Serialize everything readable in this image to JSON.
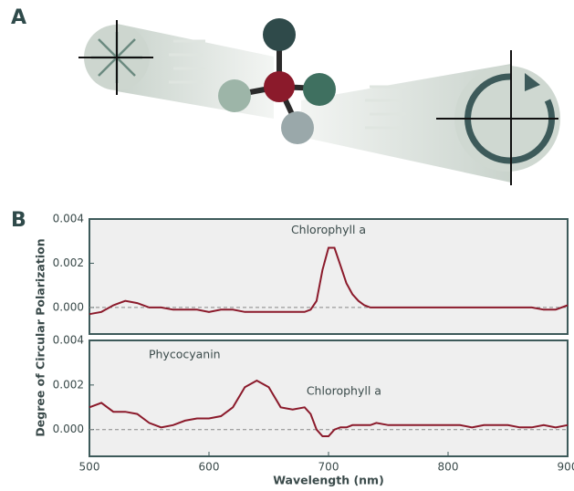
{
  "panel_labels": [
    "A",
    "B"
  ],
  "ylabel": "Degree of Circular Polarization",
  "chart_data": [
    {
      "type": "line",
      "color": "#8b1a2b",
      "x": [
        500,
        510,
        520,
        530,
        540,
        550,
        560,
        570,
        580,
        590,
        600,
        610,
        620,
        630,
        640,
        650,
        660,
        670,
        680,
        685,
        690,
        695,
        700,
        705,
        710,
        715,
        720,
        725,
        730,
        735,
        740,
        750,
        760,
        770,
        780,
        790,
        800,
        810,
        820,
        830,
        840,
        850,
        860,
        870,
        880,
        890,
        900
      ],
      "values": [
        -0.0003,
        -0.0002,
        0.0001,
        0.0003,
        0.0002,
        0.0,
        0.0,
        -0.0001,
        -0.0001,
        -0.0001,
        -0.0002,
        -0.0001,
        -0.0001,
        -0.0002,
        -0.0002,
        -0.0002,
        -0.0002,
        -0.0002,
        -0.0002,
        -0.0001,
        0.0003,
        0.0017,
        0.0027,
        0.0027,
        0.0019,
        0.0011,
        0.0006,
        0.0003,
        0.0001,
        0.0,
        0.0,
        0.0,
        0.0,
        0.0,
        0.0,
        0.0,
        0.0,
        0.0,
        0.0,
        0.0,
        0.0,
        0.0,
        0.0,
        0.0,
        -0.0001,
        -0.0001,
        0.0001
      ],
      "annotations": [
        "Chlorophyll a"
      ],
      "xlim": [
        500,
        900
      ],
      "ylim": [
        -0.0012,
        0.004
      ],
      "yticks": [
        0.004,
        0.002,
        {
          "value": 0,
          "label": "0.000"
        }
      ],
      "zero_line": true
    },
    {
      "type": "line",
      "color": "#8b1a2b",
      "x": [
        500,
        510,
        520,
        530,
        540,
        550,
        560,
        570,
        580,
        590,
        600,
        610,
        620,
        630,
        640,
        650,
        660,
        670,
        680,
        685,
        690,
        695,
        700,
        705,
        710,
        715,
        720,
        725,
        730,
        735,
        740,
        750,
        760,
        770,
        780,
        790,
        800,
        810,
        820,
        830,
        840,
        850,
        860,
        870,
        880,
        890,
        900
      ],
      "values": [
        0.001,
        0.0012,
        0.0008,
        0.0008,
        0.0007,
        0.0003,
        0.0001,
        0.0002,
        0.0004,
        0.0005,
        0.0005,
        0.0006,
        0.001,
        0.0019,
        0.0022,
        0.0019,
        0.001,
        0.0009,
        0.001,
        0.0007,
        0.0,
        -0.0003,
        -0.0003,
        0.0,
        0.0001,
        0.0001,
        0.0002,
        0.0002,
        0.0002,
        0.0002,
        0.0003,
        0.0002,
        0.0002,
        0.0002,
        0.0002,
        0.0002,
        0.0002,
        0.0002,
        0.0001,
        0.0002,
        0.0002,
        0.0002,
        0.0001,
        0.0001,
        0.0002,
        0.0001,
        0.0002
      ],
      "annotations": [
        "Phycocyanin",
        "Chlorophyll a"
      ],
      "xlim": [
        500,
        900
      ],
      "ylim": [
        -0.0012,
        0.004
      ],
      "yticks": [
        0.004,
        0.002,
        {
          "value": 0,
          "label": "0.000"
        }
      ],
      "xticks": [
        500,
        600,
        700,
        800,
        900
      ],
      "xlabel": "Wavelength (nm)",
      "zero_line": true
    }
  ]
}
